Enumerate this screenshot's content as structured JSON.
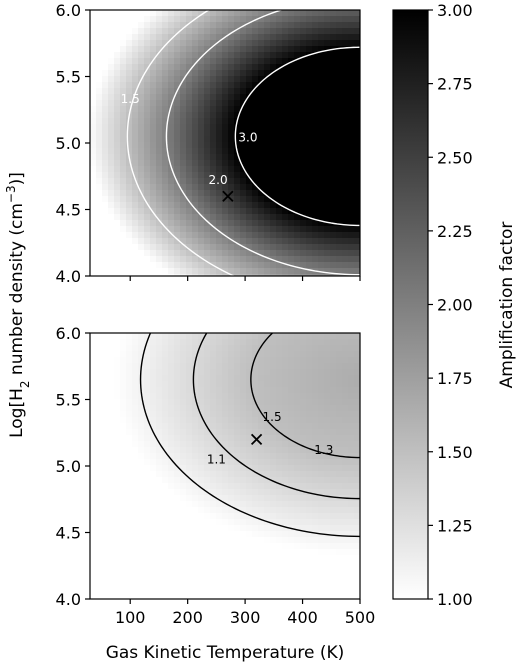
{
  "chart_data": {
    "type": "heatmap",
    "ylabel_text": "Log[H",
    "ylabel_sub": "2",
    "ylabel_rest": " number density (cm",
    "ylabel_sup": "−3",
    "ylabel_end": ")]",
    "xlabel": "Gas Kinetic Temperature (K)",
    "colorbar": {
      "label": "Amplification factor",
      "range": [
        1.0,
        3.0
      ],
      "ticks": [
        "1.00",
        "1.25",
        "1.50",
        "1.75",
        "2.00",
        "2.25",
        "2.50",
        "2.75",
        "3.00"
      ],
      "tick_values": [
        1.0,
        1.25,
        1.5,
        1.75,
        2.0,
        2.25,
        2.5,
        2.75,
        3.0
      ],
      "colormap": "white-to-black"
    },
    "panels": [
      {
        "id": "top",
        "xlim": [
          30,
          500
        ],
        "ylim": [
          4.0,
          6.0
        ],
        "xticks_shown": false,
        "yticks": [
          "4.0",
          "4.5",
          "5.0",
          "5.5",
          "6.0"
        ],
        "ytick_values": [
          4.0,
          4.5,
          5.0,
          5.5,
          6.0
        ],
        "peak": {
          "x": 500,
          "y": 5.05,
          "value": 3.2
        },
        "contour_color": "#ffffff",
        "contours": [
          {
            "level": 1.5,
            "label": "1.5",
            "vertex_x": 95,
            "label_at": {
              "x": 100,
              "y": 5.33
            }
          },
          {
            "level": 2.0,
            "label": "2.0",
            "vertex_x": 163,
            "label_at": {
              "x": 253,
              "y": 4.72
            }
          },
          {
            "level": 3.0,
            "label": "3.0",
            "vertex_x": 283,
            "label_at": {
              "x": 305,
              "y": 5.04
            }
          }
        ],
        "marker": {
          "x": 270,
          "y": 4.6,
          "symbol": "x"
        }
      },
      {
        "id": "bottom",
        "xlim": [
          30,
          500
        ],
        "ylim": [
          4.0,
          6.0
        ],
        "xticks": [
          "100",
          "200",
          "300",
          "400",
          "500"
        ],
        "xtick_values": [
          100,
          200,
          300,
          400,
          500
        ],
        "yticks": [
          "4.0",
          "4.5",
          "5.0",
          "5.5",
          "6.0"
        ],
        "ytick_values": [
          4.0,
          4.5,
          5.0,
          5.5,
          6.0
        ],
        "peak": {
          "x": 500,
          "y": 5.65,
          "value": 1.65
        },
        "contour_color": "#000000",
        "contours": [
          {
            "level": 1.1,
            "label": "1.1",
            "vertex_x": 118,
            "label_at": {
              "x": 250,
              "y": 5.05
            }
          },
          {
            "level": 1.3,
            "label": "1.3",
            "vertex_x": 210,
            "label_at": {
              "x": 437,
              "y": 5.12
            }
          },
          {
            "level": 1.5,
            "label": "1.5",
            "vertex_x": 310,
            "label_at": {
              "x": 347,
              "y": 5.37
            }
          }
        ],
        "marker": {
          "x": 320,
          "y": 5.2,
          "symbol": "x"
        }
      }
    ]
  }
}
